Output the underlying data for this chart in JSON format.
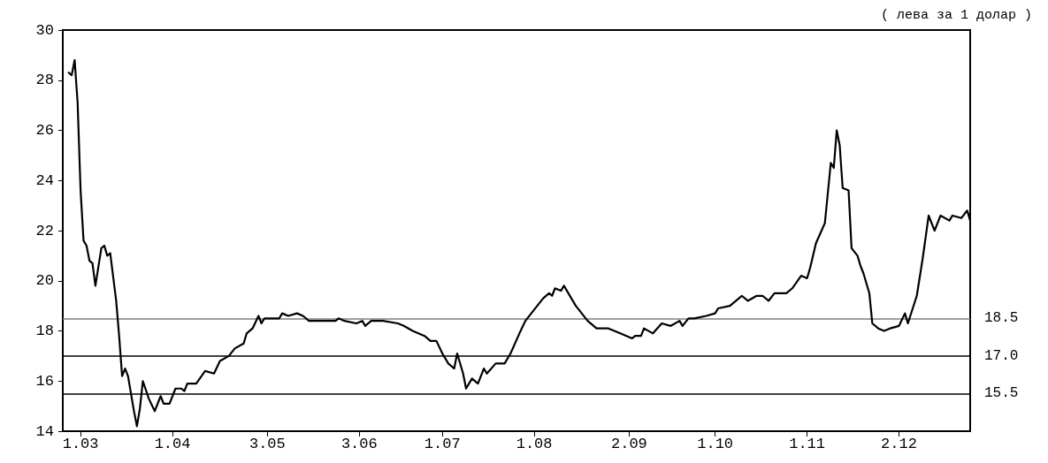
{
  "chart_data": {
    "type": "line",
    "annotations": [
      "( лева за 1 долар )"
    ],
    "x": [
      "--02-25",
      "--02-26",
      "--02-27",
      "--02-28",
      "--03-01",
      "--03-02",
      "--03-03",
      "--03-04",
      "--03-05",
      "--03-06",
      "--03-08",
      "--03-09",
      "--03-10",
      "--03-11",
      "--03-13",
      "--03-14",
      "--03-15",
      "--03-16",
      "--03-17",
      "--03-19",
      "--03-20",
      "--03-21",
      "--03-22",
      "--03-24",
      "--03-26",
      "--03-28",
      "--03-29",
      "--03-31",
      "--04-02",
      "--04-04",
      "--04-05",
      "--04-06",
      "--04-09",
      "--04-12",
      "--04-15",
      "--04-17",
      "--04-20",
      "--04-22",
      "--04-25",
      "--04-26",
      "--04-28",
      "--04-30",
      "--05-01",
      "--05-02",
      "--05-07",
      "--05-08",
      "--05-10",
      "--05-13",
      "--05-15",
      "--05-17",
      "--05-21",
      "--05-23",
      "--05-26",
      "--05-27",
      "--05-29",
      "--06-02",
      "--06-04",
      "--06-05",
      "--06-07",
      "--06-11",
      "--06-16",
      "--06-18",
      "--06-21",
      "--06-25",
      "--06-27",
      "--06-29",
      "--07-01",
      "--07-03",
      "--07-05",
      "--07-06",
      "--07-08",
      "--07-09",
      "--07-11",
      "--07-13",
      "--07-15",
      "--07-16",
      "--07-19",
      "--07-22",
      "--07-24",
      "--07-27",
      "--07-29",
      "--07-31",
      "--08-04",
      "--08-06",
      "--08-07",
      "--08-08",
      "--08-10",
      "--08-11",
      "--08-15",
      "--08-19",
      "--08-22",
      "--08-26",
      "--08-30",
      "--09-03",
      "--09-04",
      "--09-06",
      "--09-07",
      "--09-10",
      "--09-13",
      "--09-16",
      "--09-19",
      "--09-20",
      "--09-22",
      "--09-24",
      "--09-28",
      "--10-01",
      "--10-02",
      "--10-06",
      "--10-09",
      "--10-10",
      "--10-12",
      "--10-15",
      "--10-17",
      "--10-19",
      "--10-21",
      "--10-25",
      "--10-27",
      "--10-30",
      "--11-01",
      "--11-02",
      "--11-04",
      "--11-07",
      "--11-09",
      "--11-10",
      "--11-11",
      "--11-12",
      "--11-13",
      "--11-15",
      "--11-16",
      "--11-18",
      "--11-19",
      "--11-20",
      "--11-22",
      "--11-23",
      "--11-25",
      "--11-27",
      "--11-29",
      "--12-02",
      "--12-04",
      "--12-05",
      "--12-08",
      "--12-10",
      "--12-12",
      "--12-14",
      "--12-16",
      "--12-19",
      "--12-20",
      "--12-23",
      "--12-25",
      "--12-26"
    ],
    "series": [
      {
        "color": "#000000",
        "values": [
          28.3,
          28.2,
          28.8,
          27.1,
          23.6,
          21.6,
          21.4,
          20.8,
          20.7,
          19.8,
          21.3,
          21.4,
          21.0,
          21.1,
          19.2,
          17.8,
          16.2,
          16.5,
          16.2,
          14.8,
          14.2,
          14.9,
          16.0,
          15.3,
          14.8,
          15.4,
          15.1,
          15.1,
          15.7,
          15.7,
          15.6,
          15.9,
          15.9,
          16.4,
          16.3,
          16.8,
          17.0,
          17.3,
          17.5,
          17.9,
          18.1,
          18.6,
          18.3,
          18.5,
          18.5,
          18.7,
          18.6,
          18.7,
          18.6,
          18.4,
          18.4,
          18.4,
          18.4,
          18.5,
          18.4,
          18.3,
          18.4,
          18.2,
          18.4,
          18.4,
          18.3,
          18.2,
          18.0,
          17.8,
          17.6,
          17.6,
          17.1,
          16.7,
          16.5,
          17.1,
          16.3,
          15.7,
          16.1,
          15.9,
          16.5,
          16.3,
          16.7,
          16.7,
          17.1,
          17.9,
          18.4,
          18.7,
          19.3,
          19.5,
          19.4,
          19.7,
          19.6,
          19.8,
          19.0,
          18.4,
          18.1,
          18.1,
          17.9,
          17.7,
          17.8,
          17.8,
          18.1,
          17.9,
          18.3,
          18.2,
          18.4,
          18.2,
          18.5,
          18.5,
          18.6,
          18.7,
          18.9,
          19.0,
          19.3,
          19.4,
          19.2,
          19.4,
          19.4,
          19.2,
          19.5,
          19.5,
          19.7,
          20.2,
          20.1,
          20.5,
          21.5,
          22.3,
          24.7,
          24.5,
          26.0,
          25.4,
          23.7,
          23.6,
          21.3,
          21.0,
          20.6,
          20.3,
          19.5,
          18.3,
          18.1,
          18.0,
          18.1,
          18.2,
          18.7,
          18.3,
          19.4,
          20.9,
          22.6,
          22.0,
          22.6,
          22.4,
          22.6,
          22.5,
          22.8,
          22.4
        ]
      }
    ],
    "xlim": [
      "--02-23",
      "--12-26"
    ],
    "xticks": [
      {
        "value": "--03-01",
        "label": "1.03"
      },
      {
        "value": "--04-01",
        "label": "1.04"
      },
      {
        "value": "--05-03",
        "label": "3.05"
      },
      {
        "value": "--06-03",
        "label": "3.06"
      },
      {
        "value": "--07-01",
        "label": "1.07"
      },
      {
        "value": "--08-01",
        "label": "1.08"
      },
      {
        "value": "--09-02",
        "label": "2.09"
      },
      {
        "value": "--10-01",
        "label": "1.10"
      },
      {
        "value": "--11-01",
        "label": "1.11"
      },
      {
        "value": "--12-02",
        "label": "2.12"
      }
    ],
    "ylim": [
      14,
      30
    ],
    "yticks": [
      14,
      16,
      18,
      20,
      22,
      24,
      26,
      28,
      30
    ],
    "ref_lines": [
      {
        "axis": "y",
        "value": 18.5,
        "label": "18.5",
        "color": "#808080"
      },
      {
        "axis": "y",
        "value": 17.0,
        "label": "17.0",
        "color": "#000000"
      },
      {
        "axis": "y",
        "value": 15.5,
        "label": "15.5",
        "color": "#000000"
      }
    ],
    "grid": false,
    "marker": "none",
    "line_style": "solid"
  }
}
